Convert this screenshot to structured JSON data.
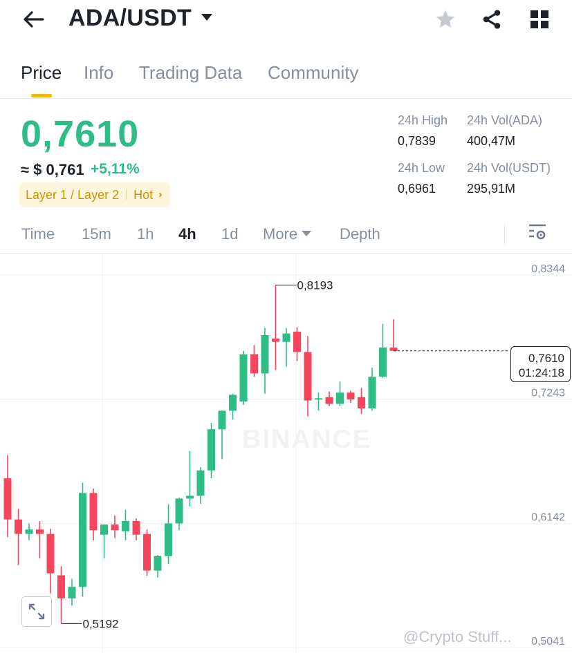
{
  "header": {
    "pair": "ADA/USDT",
    "back_icon": "arrow-left-icon",
    "dropdown_icon": "caret-down-icon",
    "favorite_icon": "star-icon",
    "share_icon": "share-icon",
    "menu_icon": "grid-icon"
  },
  "tabs": [
    {
      "label": "Price",
      "active": true
    },
    {
      "label": "Info",
      "active": false
    },
    {
      "label": "Trading Data",
      "active": false
    },
    {
      "label": "Community",
      "active": false
    }
  ],
  "ticker": {
    "last_price": "0,7610",
    "fiat_approx": "≈ $ 0,761",
    "change_percent": "+5,11%",
    "tag1": "Layer 1 / Layer 2",
    "tag2": "Hot",
    "tag_chevron": "›",
    "high_label": "24h High",
    "high_value": "0,7839",
    "low_label": "24h Low",
    "low_value": "0,6961",
    "vol_base_label": "24h Vol(ADA)",
    "vol_base_value": "400,47M",
    "vol_quote_label": "24h Vol(USDT)",
    "vol_quote_value": "295,91M"
  },
  "intervals": {
    "items": [
      "Time",
      "15m",
      "1h",
      "4h",
      "1d"
    ],
    "active": "4h",
    "more_label": "More",
    "depth_label": "Depth",
    "settings_icon": "chart-settings-icon"
  },
  "chart_data": {
    "type": "candlestick",
    "y_axis_ticks": [
      "0,8344",
      "0,7243",
      "0,6142",
      "0,5041"
    ],
    "ylim": [
      0.5041,
      0.8344
    ],
    "watermark": "BINANCE",
    "max_label": "0,8193",
    "min_label": "0,5192",
    "current_price": "0,7610",
    "countdown": "01:24:18",
    "colors": {
      "up": "#2ebd85",
      "down": "#f6465d"
    },
    "candles": [
      {
        "o": 0.648,
        "h": 0.6685,
        "l": 0.5959,
        "c": 0.6115
      },
      {
        "o": 0.6115,
        "h": 0.621,
        "l": 0.571,
        "c": 0.5987
      },
      {
        "o": 0.5987,
        "h": 0.608,
        "l": 0.593,
        "c": 0.6026
      },
      {
        "o": 0.6026,
        "h": 0.6101,
        "l": 0.5769,
        "c": 0.5987
      },
      {
        "o": 0.5987,
        "h": 0.6031,
        "l": 0.546,
        "c": 0.5637
      },
      {
        "o": 0.562,
        "h": 0.57,
        "l": 0.5192,
        "c": 0.5415
      },
      {
        "o": 0.5415,
        "h": 0.559,
        "l": 0.535,
        "c": 0.5517
      },
      {
        "o": 0.5517,
        "h": 0.6441,
        "l": 0.543,
        "c": 0.635
      },
      {
        "o": 0.635,
        "h": 0.6389,
        "l": 0.593,
        "c": 0.602
      },
      {
        "o": 0.598,
        "h": 0.607,
        "l": 0.5769,
        "c": 0.607
      },
      {
        "o": 0.607,
        "h": 0.615,
        "l": 0.595,
        "c": 0.602
      },
      {
        "o": 0.601,
        "h": 0.6201,
        "l": 0.593,
        "c": 0.6101
      },
      {
        "o": 0.6101,
        "h": 0.6126,
        "l": 0.593,
        "c": 0.598
      },
      {
        "o": 0.5987,
        "h": 0.6026,
        "l": 0.5616,
        "c": 0.5662
      },
      {
        "o": 0.5662,
        "h": 0.58,
        "l": 0.56,
        "c": 0.579
      },
      {
        "o": 0.579,
        "h": 0.625,
        "l": 0.572,
        "c": 0.608
      },
      {
        "o": 0.608,
        "h": 0.6309,
        "l": 0.602,
        "c": 0.63
      },
      {
        "o": 0.63,
        "h": 0.6721,
        "l": 0.623,
        "c": 0.6325
      },
      {
        "o": 0.6325,
        "h": 0.658,
        "l": 0.6253,
        "c": 0.655
      },
      {
        "o": 0.655,
        "h": 0.6971,
        "l": 0.648,
        "c": 0.6915
      },
      {
        "o": 0.6915,
        "h": 0.7082,
        "l": 0.665,
        "c": 0.7079
      },
      {
        "o": 0.7079,
        "h": 0.7229,
        "l": 0.7,
        "c": 0.722
      },
      {
        "o": 0.716,
        "h": 0.761,
        "l": 0.713,
        "c": 0.758
      },
      {
        "o": 0.758,
        "h": 0.7662,
        "l": 0.738,
        "c": 0.741
      },
      {
        "o": 0.741,
        "h": 0.7813,
        "l": 0.723,
        "c": 0.775
      },
      {
        "o": 0.7719,
        "h": 0.8193,
        "l": 0.744,
        "c": 0.769
      },
      {
        "o": 0.769,
        "h": 0.7813,
        "l": 0.747,
        "c": 0.7764
      },
      {
        "o": 0.778,
        "h": 0.782,
        "l": 0.752,
        "c": 0.76
      },
      {
        "o": 0.76,
        "h": 0.774,
        "l": 0.703,
        "c": 0.717
      },
      {
        "o": 0.718,
        "h": 0.724,
        "l": 0.708,
        "c": 0.719
      },
      {
        "o": 0.72,
        "h": 0.725,
        "l": 0.712,
        "c": 0.714
      },
      {
        "o": 0.714,
        "h": 0.734,
        "l": 0.712,
        "c": 0.724
      },
      {
        "o": 0.724,
        "h": 0.7257,
        "l": 0.715,
        "c": 0.718
      },
      {
        "o": 0.72,
        "h": 0.728,
        "l": 0.705,
        "c": 0.71
      },
      {
        "o": 0.71,
        "h": 0.746,
        "l": 0.708,
        "c": 0.738
      },
      {
        "o": 0.738,
        "h": 0.785,
        "l": 0.737,
        "c": 0.764
      },
      {
        "o": 0.764,
        "h": 0.789,
        "l": 0.761,
        "c": 0.761
      }
    ]
  },
  "credit": "@Crypto Stuff..."
}
